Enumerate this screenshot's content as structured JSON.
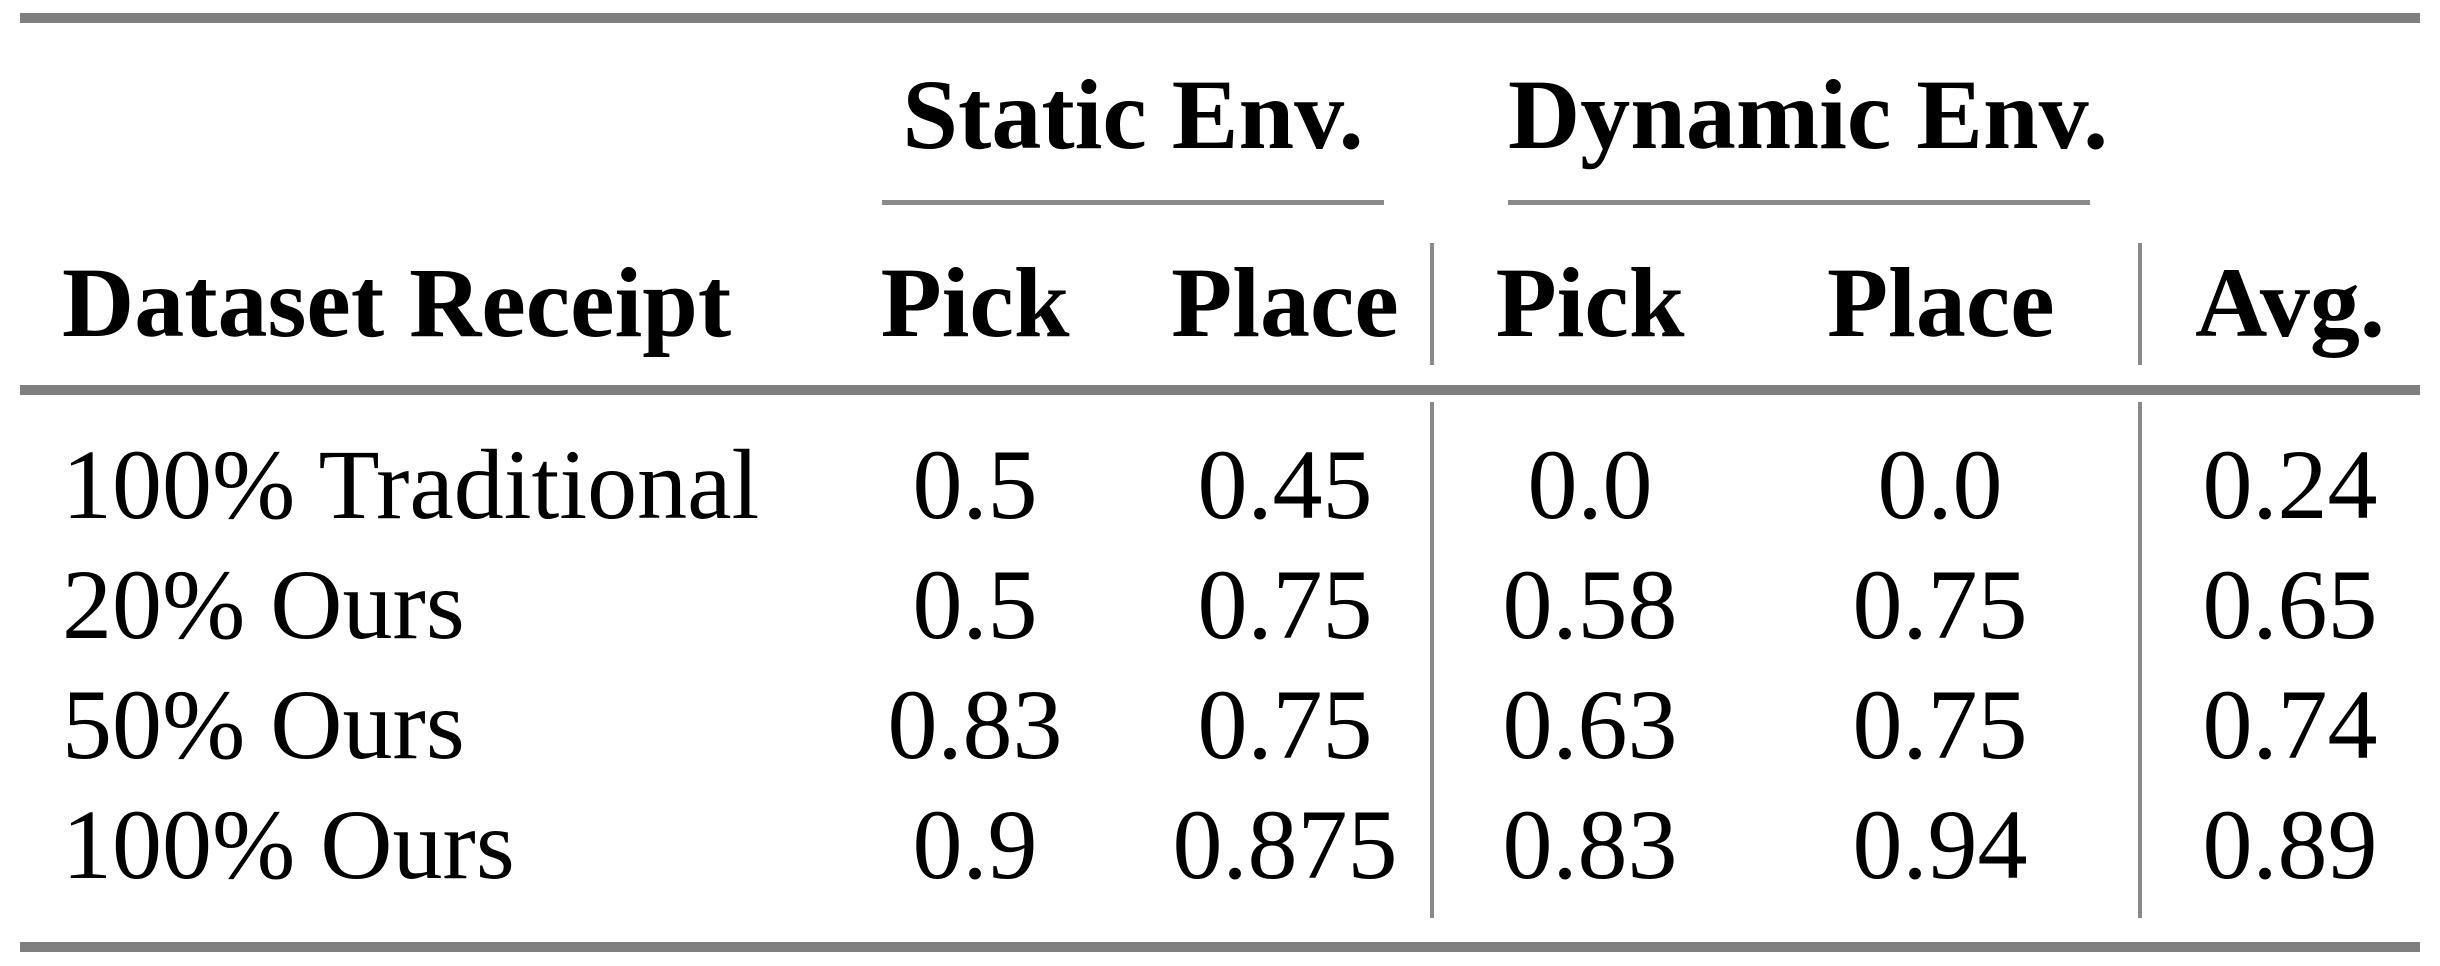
{
  "colors": {
    "background": "#ffffff",
    "text": "#000000",
    "thick_rule": "#7f7f7f",
    "cmidrule": "#8a8a8a",
    "vertical_separator": "#8a8a8a"
  },
  "table": {
    "groups": [
      {
        "label": "Static Env."
      },
      {
        "label": "Dynamic Env."
      }
    ],
    "header": {
      "row_label": "Dataset Receipt",
      "columns": [
        "Pick",
        "Place",
        "Pick",
        "Place",
        "Avg."
      ]
    },
    "rows": [
      {
        "label": "100% Traditional",
        "values": [
          "0.5",
          "0.45",
          "0.0",
          "0.0",
          "0.24"
        ]
      },
      {
        "label": "20% Ours",
        "values": [
          "0.5",
          "0.75",
          "0.58",
          "0.75",
          "0.65"
        ]
      },
      {
        "label": "50% Ours",
        "values": [
          "0.83",
          "0.75",
          "0.63",
          "0.75",
          "0.74"
        ]
      },
      {
        "label": "100% Ours",
        "values": [
          "0.9",
          "0.875",
          "0.83",
          "0.94",
          "0.89"
        ]
      }
    ]
  },
  "chart_data": {
    "type": "table",
    "title": "",
    "column_groups": [
      {
        "label": "Static Env.",
        "columns": [
          "Pick",
          "Place"
        ]
      },
      {
        "label": "Dynamic Env.",
        "columns": [
          "Pick",
          "Place"
        ]
      }
    ],
    "row_header": "Dataset Receipt",
    "columns": [
      "Static Pick",
      "Static Place",
      "Dynamic Pick",
      "Dynamic Place",
      "Avg."
    ],
    "rows": [
      {
        "label": "100% Traditional",
        "values": [
          0.5,
          0.45,
          0.0,
          0.0,
          0.24
        ]
      },
      {
        "label": "20% Ours",
        "values": [
          0.5,
          0.75,
          0.58,
          0.75,
          0.65
        ]
      },
      {
        "label": "50% Ours",
        "values": [
          0.83,
          0.75,
          0.63,
          0.75,
          0.74
        ]
      },
      {
        "label": "100% Ours",
        "values": [
          0.9,
          0.875,
          0.83,
          0.94,
          0.89
        ]
      }
    ]
  }
}
